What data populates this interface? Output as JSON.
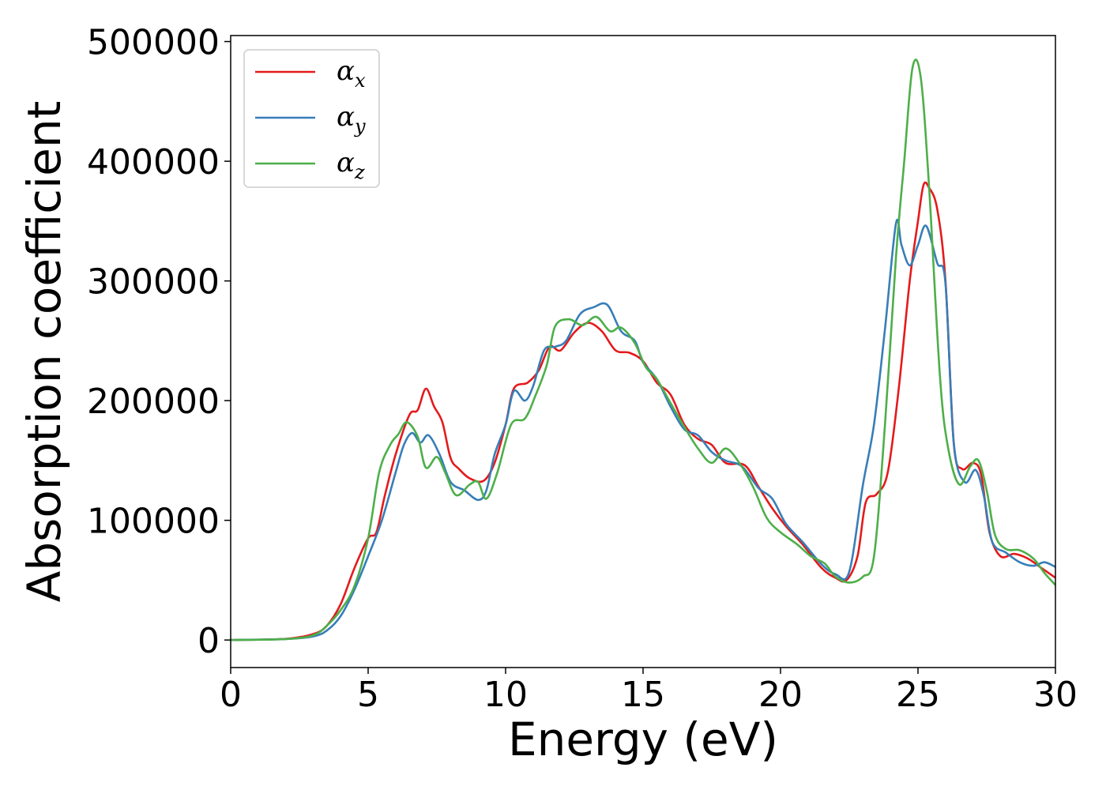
{
  "chart_data": {
    "type": "line",
    "title": "",
    "xlabel": "Energy (eV)",
    "ylabel": "Absorption coefficient",
    "xlim": [
      0,
      30
    ],
    "ylim": [
      -23000,
      505000
    ],
    "xticks": [
      0,
      5,
      10,
      15,
      20,
      25,
      30
    ],
    "xtick_labels": [
      "0",
      "5",
      "10",
      "15",
      "20",
      "25",
      "30"
    ],
    "yticks": [
      0,
      100000,
      200000,
      300000,
      400000,
      500000
    ],
    "ytick_labels": [
      "0",
      "100000",
      "200000",
      "300000",
      "400000",
      "500000"
    ],
    "grid": false,
    "legend_position": "top-left",
    "series": [
      {
        "name": "α",
        "subscript": "x",
        "color": "#e41a1c",
        "points": [
          [
            0,
            0
          ],
          [
            2,
            1000
          ],
          [
            3,
            5000
          ],
          [
            3.5,
            12000
          ],
          [
            4,
            30000
          ],
          [
            4.5,
            60000
          ],
          [
            5,
            85000
          ],
          [
            5.3,
            90000
          ],
          [
            5.6,
            120000
          ],
          [
            6,
            155000
          ],
          [
            6.5,
            188000
          ],
          [
            6.8,
            192000
          ],
          [
            7.1,
            210000
          ],
          [
            7.4,
            195000
          ],
          [
            7.7,
            182000
          ],
          [
            8,
            152000
          ],
          [
            8.3,
            143000
          ],
          [
            8.7,
            135000
          ],
          [
            9.2,
            133000
          ],
          [
            9.6,
            148000
          ],
          [
            10,
            180000
          ],
          [
            10.3,
            210000
          ],
          [
            10.8,
            215000
          ],
          [
            11.2,
            225000
          ],
          [
            11.6,
            245000
          ],
          [
            12,
            242000
          ],
          [
            12.5,
            257000
          ],
          [
            13,
            265000
          ],
          [
            13.5,
            258000
          ],
          [
            14,
            242000
          ],
          [
            14.5,
            240000
          ],
          [
            15,
            233000
          ],
          [
            15.5,
            215000
          ],
          [
            16,
            205000
          ],
          [
            16.5,
            180000
          ],
          [
            17,
            168000
          ],
          [
            17.5,
            163000
          ],
          [
            18,
            148000
          ],
          [
            18.7,
            146000
          ],
          [
            19.2,
            128000
          ],
          [
            19.7,
            110000
          ],
          [
            20.2,
            95000
          ],
          [
            20.8,
            80000
          ],
          [
            21.5,
            60000
          ],
          [
            22,
            52000
          ],
          [
            22.4,
            50000
          ],
          [
            22.8,
            70000
          ],
          [
            23.1,
            115000
          ],
          [
            23.5,
            122000
          ],
          [
            23.9,
            140000
          ],
          [
            24.3,
            210000
          ],
          [
            24.7,
            300000
          ],
          [
            25,
            350000
          ],
          [
            25.2,
            380000
          ],
          [
            25.4,
            378000
          ],
          [
            25.7,
            360000
          ],
          [
            26,
            300000
          ],
          [
            26.3,
            165000
          ],
          [
            26.6,
            143000
          ],
          [
            27,
            148000
          ],
          [
            27.3,
            138000
          ],
          [
            27.6,
            90000
          ],
          [
            28,
            70000
          ],
          [
            28.5,
            72000
          ],
          [
            29,
            68000
          ],
          [
            29.5,
            60000
          ],
          [
            30,
            52000
          ]
        ]
      },
      {
        "name": "α",
        "subscript": "y",
        "color": "#377eb8",
        "points": [
          [
            0,
            0
          ],
          [
            2,
            800
          ],
          [
            3,
            3000
          ],
          [
            3.5,
            8000
          ],
          [
            4,
            20000
          ],
          [
            4.5,
            42000
          ],
          [
            5,
            70000
          ],
          [
            5.5,
            100000
          ],
          [
            6,
            140000
          ],
          [
            6.3,
            163000
          ],
          [
            6.6,
            173000
          ],
          [
            6.9,
            165000
          ],
          [
            7.2,
            171000
          ],
          [
            7.6,
            155000
          ],
          [
            8,
            132000
          ],
          [
            8.5,
            125000
          ],
          [
            9,
            117000
          ],
          [
            9.3,
            125000
          ],
          [
            9.6,
            155000
          ],
          [
            10,
            180000
          ],
          [
            10.3,
            208000
          ],
          [
            10.7,
            200000
          ],
          [
            11,
            212000
          ],
          [
            11.4,
            242000
          ],
          [
            11.8,
            245000
          ],
          [
            12.2,
            250000
          ],
          [
            12.7,
            272000
          ],
          [
            13.2,
            278000
          ],
          [
            13.7,
            280000
          ],
          [
            14.2,
            258000
          ],
          [
            14.7,
            250000
          ],
          [
            15,
            232000
          ],
          [
            15.5,
            218000
          ],
          [
            16,
            195000
          ],
          [
            16.5,
            176000
          ],
          [
            17,
            171000
          ],
          [
            17.5,
            157000
          ],
          [
            18,
            150000
          ],
          [
            18.6,
            145000
          ],
          [
            19.2,
            127000
          ],
          [
            19.7,
            118000
          ],
          [
            20.2,
            97000
          ],
          [
            20.8,
            82000
          ],
          [
            21.5,
            63000
          ],
          [
            22,
            55000
          ],
          [
            22.5,
            57000
          ],
          [
            23,
            130000
          ],
          [
            23.4,
            180000
          ],
          [
            23.8,
            260000
          ],
          [
            24.2,
            348000
          ],
          [
            24.4,
            330000
          ],
          [
            24.7,
            313000
          ],
          [
            25,
            330000
          ],
          [
            25.3,
            346000
          ],
          [
            25.7,
            315000
          ],
          [
            26,
            298000
          ],
          [
            26.3,
            165000
          ],
          [
            26.7,
            132000
          ],
          [
            27.1,
            142000
          ],
          [
            27.4,
            120000
          ],
          [
            27.7,
            82000
          ],
          [
            28.2,
            73000
          ],
          [
            28.7,
            65000
          ],
          [
            29.2,
            62000
          ],
          [
            29.6,
            65000
          ],
          [
            30,
            61000
          ]
        ]
      },
      {
        "name": "α",
        "subscript": "z",
        "color": "#4daf4a",
        "points": [
          [
            0,
            0
          ],
          [
            2,
            800
          ],
          [
            3,
            4000
          ],
          [
            3.5,
            12000
          ],
          [
            4,
            25000
          ],
          [
            4.5,
            45000
          ],
          [
            5,
            85000
          ],
          [
            5.4,
            140000
          ],
          [
            5.8,
            163000
          ],
          [
            6.1,
            172000
          ],
          [
            6.4,
            182000
          ],
          [
            6.8,
            170000
          ],
          [
            7.1,
            144000
          ],
          [
            7.5,
            153000
          ],
          [
            7.8,
            140000
          ],
          [
            8.2,
            121000
          ],
          [
            8.7,
            130000
          ],
          [
            9,
            132000
          ],
          [
            9.3,
            118000
          ],
          [
            9.7,
            140000
          ],
          [
            10.2,
            180000
          ],
          [
            10.7,
            185000
          ],
          [
            11.1,
            205000
          ],
          [
            11.5,
            230000
          ],
          [
            11.8,
            262000
          ],
          [
            12.3,
            268000
          ],
          [
            12.8,
            263000
          ],
          [
            13.3,
            270000
          ],
          [
            13.8,
            258000
          ],
          [
            14.2,
            261000
          ],
          [
            14.7,
            248000
          ],
          [
            15.1,
            228000
          ],
          [
            15.5,
            218000
          ],
          [
            16,
            198000
          ],
          [
            16.5,
            178000
          ],
          [
            17,
            160000
          ],
          [
            17.5,
            148000
          ],
          [
            18,
            160000
          ],
          [
            18.5,
            148000
          ],
          [
            19,
            128000
          ],
          [
            19.5,
            102000
          ],
          [
            20,
            90000
          ],
          [
            20.6,
            80000
          ],
          [
            21.1,
            70000
          ],
          [
            21.6,
            64000
          ],
          [
            22,
            53000
          ],
          [
            22.5,
            48000
          ],
          [
            23,
            53000
          ],
          [
            23.4,
            70000
          ],
          [
            23.8,
            180000
          ],
          [
            24.2,
            320000
          ],
          [
            24.5,
            400000
          ],
          [
            24.8,
            478000
          ],
          [
            25.1,
            470000
          ],
          [
            25.4,
            380000
          ],
          [
            25.8,
            220000
          ],
          [
            26.1,
            160000
          ],
          [
            26.5,
            130000
          ],
          [
            26.9,
            145000
          ],
          [
            27.2,
            150000
          ],
          [
            27.5,
            125000
          ],
          [
            27.8,
            88000
          ],
          [
            28.2,
            76000
          ],
          [
            28.7,
            75000
          ],
          [
            29.2,
            68000
          ],
          [
            29.6,
            56000
          ],
          [
            30,
            46000
          ]
        ]
      }
    ]
  }
}
